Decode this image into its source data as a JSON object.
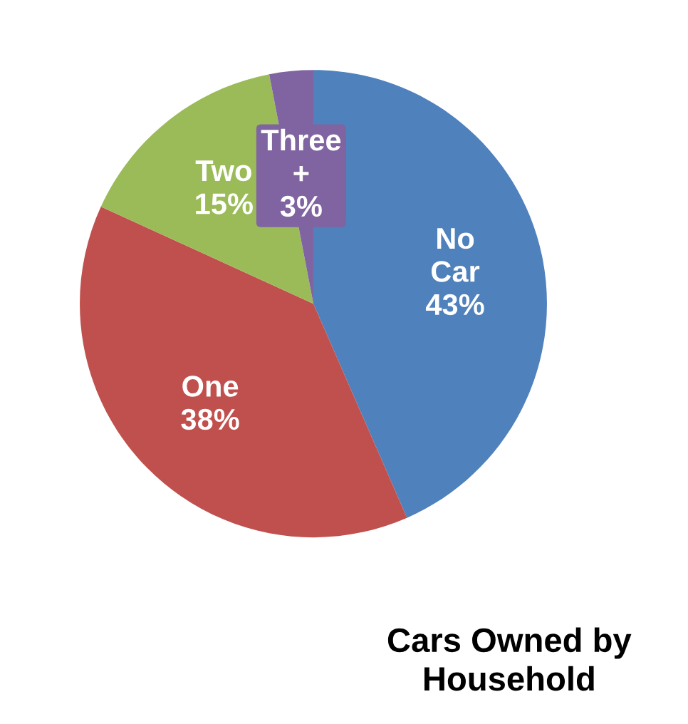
{
  "chart_data": {
    "type": "pie",
    "title": "Cars Owned by\nHousehold",
    "categories": [
      "No Car",
      "One",
      "Two",
      "Three +"
    ],
    "values": [
      43,
      38,
      15,
      3
    ],
    "colors": [
      "#4f81bd",
      "#c0504d",
      "#9bbb59",
      "#8064a2"
    ],
    "value_labels": [
      "43%",
      "38%",
      "15%",
      "3%"
    ]
  }
}
